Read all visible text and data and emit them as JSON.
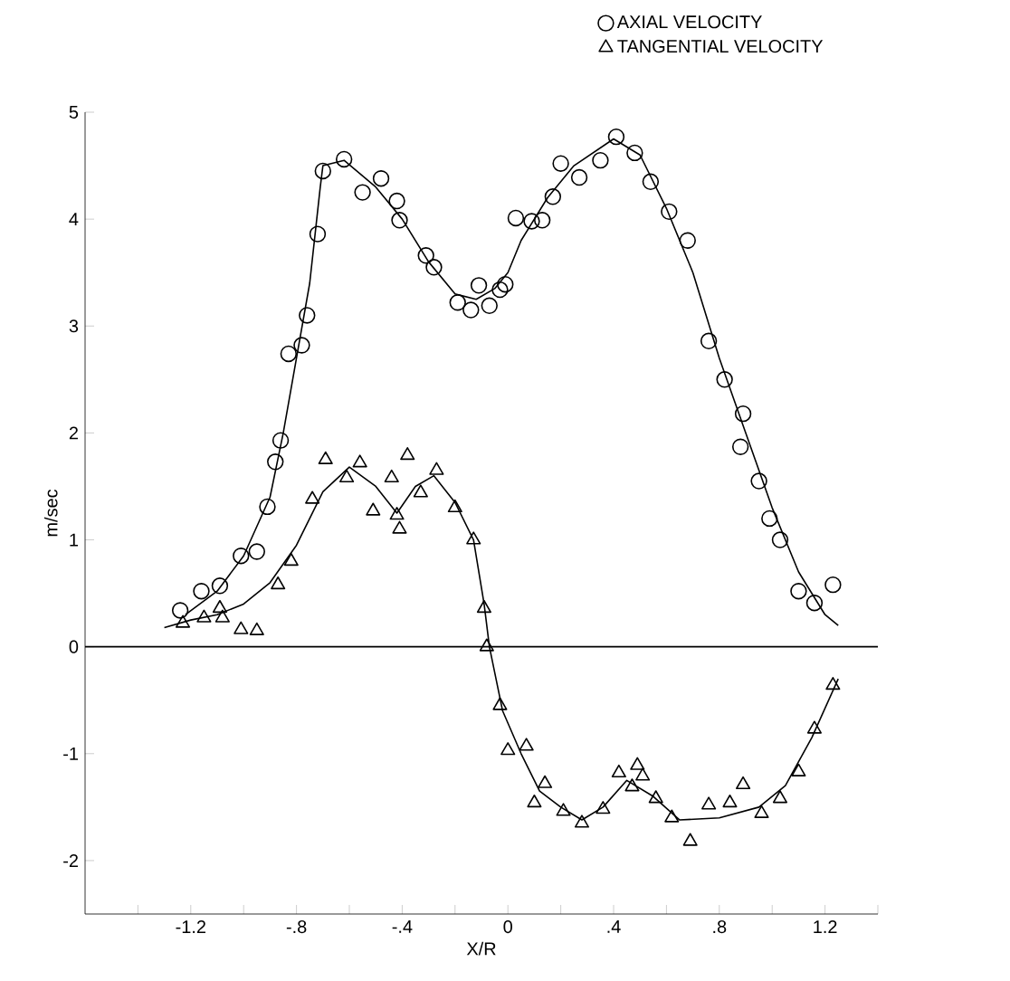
{
  "chart_data": {
    "type": "scatter",
    "xlabel": "X/R",
    "ylabel": "m/sec",
    "xlim": [
      -1.6,
      1.4
    ],
    "ylim": [
      -2.5,
      5
    ],
    "xticks": [
      {
        "value": -1.4,
        "label": null
      },
      {
        "value": -1.2,
        "label": "-1.2"
      },
      {
        "value": -1.0,
        "label": null
      },
      {
        "value": -0.8,
        "label": "-.8"
      },
      {
        "value": -0.6,
        "label": null
      },
      {
        "value": -0.4,
        "label": "-.4"
      },
      {
        "value": -0.2,
        "label": null
      },
      0,
      {
        "value": 0.2,
        "label": null
      },
      {
        "value": 0.4,
        "label": ".4"
      },
      {
        "value": 0.6,
        "label": null
      },
      {
        "value": 0.8,
        "label": ".8"
      },
      {
        "value": 1.0,
        "label": null
      },
      {
        "value": 1.2,
        "label": "1.2"
      },
      {
        "value": 1.4,
        "label": null
      }
    ],
    "yticks": [
      -2,
      -1,
      0,
      1,
      2,
      3,
      4,
      5
    ],
    "legend": "top right",
    "grid": false,
    "ref_lines": [
      {
        "axis": "y",
        "value": 0
      }
    ],
    "series": [
      {
        "name": "AXIAL VELOCITY",
        "color": "#000000",
        "marker": "circle",
        "x": [
          -1.24,
          -1.16,
          -1.09,
          -1.01,
          -0.95,
          -0.91,
          -0.88,
          -0.86,
          -0.83,
          -0.78,
          -0.76,
          -0.72,
          -0.7,
          -0.62,
          -0.55,
          -0.48,
          -0.42,
          -0.41,
          -0.31,
          -0.28,
          -0.19,
          -0.14,
          -0.11,
          -0.07,
          -0.03,
          -0.01,
          0.03,
          0.09,
          0.13,
          0.17,
          0.2,
          0.27,
          0.35,
          0.41,
          0.48,
          0.54,
          0.61,
          0.68,
          0.76,
          0.82,
          0.89,
          0.88,
          0.95,
          0.99,
          1.03,
          1.1,
          1.16,
          1.23
        ],
        "values": [
          0.34,
          0.52,
          0.57,
          0.85,
          0.89,
          1.31,
          1.73,
          1.93,
          2.74,
          2.82,
          3.1,
          3.86,
          4.45,
          4.56,
          4.25,
          4.38,
          4.17,
          3.99,
          3.66,
          3.55,
          3.22,
          3.15,
          3.38,
          3.19,
          3.34,
          3.39,
          4.01,
          3.98,
          3.99,
          4.21,
          4.52,
          4.39,
          4.55,
          4.77,
          4.62,
          4.35,
          4.07,
          3.8,
          2.86,
          2.5,
          2.18,
          1.87,
          1.55,
          1.2,
          1.0,
          0.52,
          0.41,
          0.58
        ]
      },
      {
        "name": "TANGENTIAL VELOCITY",
        "color": "#000000",
        "marker": "triangle",
        "x": [
          -1.23,
          -1.15,
          -1.09,
          -1.08,
          -1.01,
          -0.95,
          -0.87,
          -0.82,
          -0.74,
          -0.69,
          -0.61,
          -0.56,
          -0.51,
          -0.44,
          -0.42,
          -0.41,
          -0.38,
          -0.33,
          -0.27,
          -0.2,
          -0.13,
          -0.09,
          -0.08,
          -0.03,
          0.0,
          0.07,
          0.1,
          0.14,
          0.21,
          0.28,
          0.36,
          0.42,
          0.47,
          0.49,
          0.51,
          0.56,
          0.62,
          0.69,
          0.76,
          0.84,
          0.89,
          0.96,
          1.03,
          1.1,
          1.16,
          1.23
        ],
        "values": [
          0.22,
          0.27,
          0.36,
          0.27,
          0.16,
          0.15,
          0.58,
          0.8,
          1.38,
          1.75,
          1.58,
          1.72,
          1.27,
          1.58,
          1.23,
          1.1,
          1.79,
          1.44,
          1.65,
          1.3,
          1.0,
          0.36,
          0.0,
          -0.55,
          -0.97,
          -0.93,
          -1.46,
          -1.28,
          -1.54,
          -1.65,
          -1.52,
          -1.18,
          -1.31,
          -1.11,
          -1.21,
          -1.42,
          -1.6,
          -1.82,
          -1.48,
          -1.46,
          -1.29,
          -1.56,
          -1.42,
          -1.17,
          -0.77,
          -0.36
        ]
      },
      {
        "type": "line",
        "color": "#000000",
        "marker": "none",
        "x": [
          -1.22,
          -1.1,
          -1.0,
          -0.9,
          -0.85,
          -0.8,
          -0.75,
          -0.71,
          -0.7,
          -0.62,
          -0.5,
          -0.4,
          -0.3,
          -0.2,
          -0.12,
          -0.05,
          0.0,
          0.05,
          0.15,
          0.25,
          0.4,
          0.5,
          0.6,
          0.7,
          0.8,
          0.9,
          1.0,
          1.1,
          1.2,
          1.25
        ],
        "values": [
          0.3,
          0.52,
          0.85,
          1.4,
          2.0,
          2.7,
          3.4,
          4.3,
          4.5,
          4.55,
          4.3,
          4.0,
          3.6,
          3.3,
          3.25,
          3.35,
          3.5,
          3.8,
          4.2,
          4.5,
          4.75,
          4.6,
          4.1,
          3.5,
          2.7,
          2.0,
          1.3,
          0.7,
          0.3,
          0.2
        ]
      },
      {
        "type": "line",
        "color": "#000000",
        "marker": "none",
        "x": [
          -1.3,
          -1.2,
          -1.1,
          -1.0,
          -0.9,
          -0.8,
          -0.7,
          -0.6,
          -0.5,
          -0.42,
          -0.35,
          -0.28,
          -0.2,
          -0.13,
          -0.09,
          -0.07,
          -0.02,
          0.05,
          0.12,
          0.2,
          0.28,
          0.36,
          0.45,
          0.55,
          0.65,
          0.8,
          0.95,
          1.05,
          1.15,
          1.25
        ],
        "values": [
          0.18,
          0.25,
          0.3,
          0.4,
          0.6,
          0.95,
          1.45,
          1.68,
          1.5,
          1.25,
          1.5,
          1.6,
          1.35,
          1.0,
          0.4,
          0.0,
          -0.6,
          -1.0,
          -1.35,
          -1.5,
          -1.62,
          -1.5,
          -1.25,
          -1.4,
          -1.62,
          -1.6,
          -1.5,
          -1.3,
          -0.85,
          -0.3
        ]
      }
    ]
  }
}
